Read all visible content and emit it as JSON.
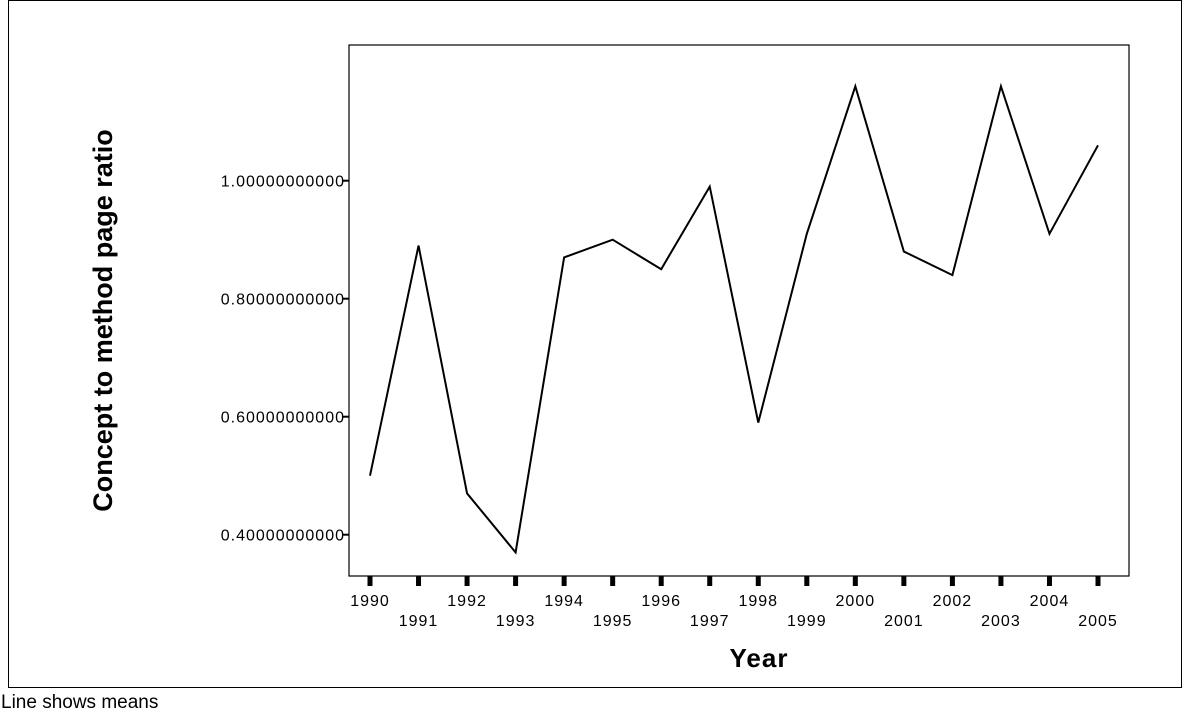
{
  "chart_data": {
    "type": "line",
    "title": "",
    "xlabel": "Year",
    "ylabel": "Concept to method page ratio",
    "x": [
      "1990",
      "1991",
      "1992",
      "1993",
      "1994",
      "1995",
      "1996",
      "1997",
      "1998",
      "1999",
      "2000",
      "2001",
      "2002",
      "2003",
      "2004",
      "2005"
    ],
    "series": [
      {
        "values": [
          0.5,
          0.89,
          0.47,
          0.37,
          0.87,
          0.9,
          0.85,
          0.99,
          0.59,
          0.91,
          1.16,
          0.88,
          0.84,
          1.16,
          0.91,
          1.06
        ]
      }
    ],
    "yticks": [
      0.4,
      0.6,
      0.8,
      1.0
    ],
    "ytick_labels": [
      "0.40000000000",
      "0.60000000000",
      "0.80000000000",
      "1.00000000000"
    ],
    "ylim": [
      0.33,
      1.23
    ],
    "grid": false,
    "line_color": "#000000"
  },
  "footnote": "Line shows means"
}
